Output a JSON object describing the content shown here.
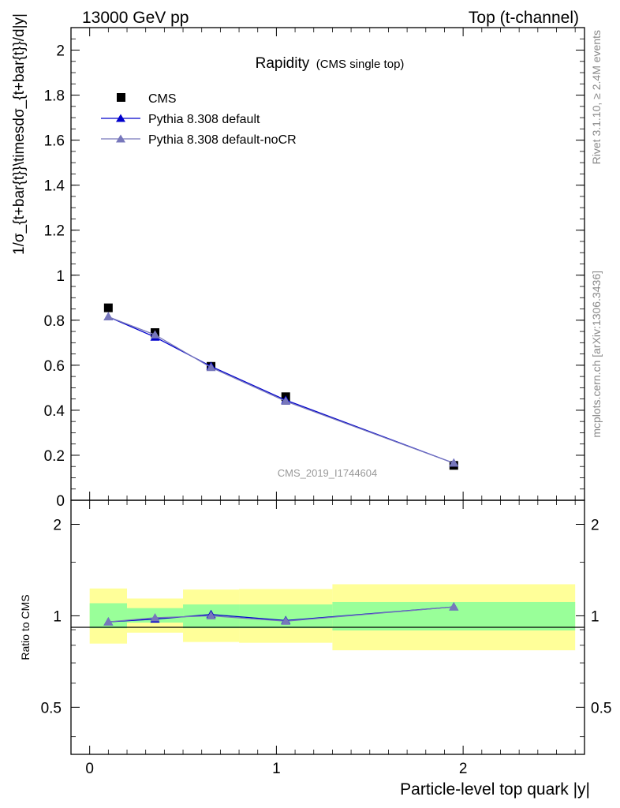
{
  "header": {
    "left": "13000 GeV pp",
    "right": "Top (t-channel)"
  },
  "side_labels": {
    "rivet": "Rivet 3.1.10, ≥ 2.4M events",
    "mcplots": "mcplots.cern.ch [arXiv:1306.3436]"
  },
  "colors": {
    "cms": "#000000",
    "pythia_default": "#0000cc",
    "pythia_nocr": "#7777bb",
    "band_inner": "#99ff99",
    "band_outer": "#ffff99"
  },
  "chart_data": [
    {
      "type": "scatter",
      "title": "Rapidity",
      "subtitle": "(CMS single top)",
      "ylabel": "1/σ_{t+bar{t}}\\timesdσ_{t+bar{t}}/d|y|",
      "watermark": "CMS_2019_I1744604",
      "xlim": [
        -0.1,
        2.65
      ],
      "ylim": [
        0,
        2.1
      ],
      "y_ticks": [
        0,
        0.2,
        0.4,
        0.6,
        0.8,
        1,
        1.2,
        1.4,
        1.6,
        1.8,
        2
      ],
      "y_tick_labels": [
        "0",
        "0.2",
        "0.4",
        "0.6",
        "0.8",
        "1",
        "1.2",
        "1.4",
        "1.6",
        "1.8",
        "2"
      ],
      "legend_position": "top-left",
      "series": [
        {
          "name": "CMS",
          "x": [
            0.1,
            0.35,
            0.65,
            1.05,
            1.95
          ],
          "y": [
            0.855,
            0.745,
            0.595,
            0.46,
            0.155
          ],
          "marker": "square"
        },
        {
          "name": "Pythia 8.308 default",
          "x": [
            0.1,
            0.35,
            0.65,
            1.05,
            1.95
          ],
          "y": [
            0.815,
            0.725,
            0.595,
            0.445,
            0.165
          ],
          "marker": "triangle"
        },
        {
          "name": "Pythia 8.308 default-noCR",
          "x": [
            0.1,
            0.35,
            0.65,
            1.05,
            1.95
          ],
          "y": [
            0.815,
            0.735,
            0.59,
            0.44,
            0.165
          ],
          "marker": "triangle"
        }
      ]
    },
    {
      "type": "line",
      "ylabel": "Ratio to CMS",
      "xlabel": "Particle-level top quark |y|",
      "xlim": [
        -0.1,
        2.65
      ],
      "ylim": [
        0.35,
        2.4
      ],
      "log_y": true,
      "x_ticks": [
        0,
        1,
        2
      ],
      "x_tick_labels": [
        "0",
        "1",
        "2"
      ],
      "y_ticks": [
        0.5,
        1,
        2
      ],
      "y_tick_labels": [
        "0.5",
        "1",
        "2"
      ],
      "bins": [
        {
          "lo": 0.0,
          "hi": 0.2,
          "inner": [
            0.91,
            1.1
          ],
          "outer": [
            0.81,
            1.23
          ]
        },
        {
          "lo": 0.2,
          "hi": 0.5,
          "inner": [
            0.95,
            1.06
          ],
          "outer": [
            0.88,
            1.14
          ]
        },
        {
          "lo": 0.5,
          "hi": 0.8,
          "inner": [
            0.91,
            1.09
          ],
          "outer": [
            0.82,
            1.22
          ]
        },
        {
          "lo": 0.8,
          "hi": 1.3,
          "inner": [
            0.91,
            1.09
          ],
          "outer": [
            0.815,
            1.225
          ]
        },
        {
          "lo": 1.3,
          "hi": 2.6,
          "inner": [
            0.895,
            1.11
          ],
          "outer": [
            0.77,
            1.27
          ]
        }
      ],
      "series": [
        {
          "name": "Pythia 8.308 default",
          "x": [
            0.1,
            0.35,
            0.65,
            1.05,
            1.95
          ],
          "y": [
            0.955,
            0.975,
            1.01,
            0.965,
            1.07
          ]
        },
        {
          "name": "Pythia 8.308 default-noCR",
          "x": [
            0.1,
            0.35,
            0.65,
            1.05,
            1.95
          ],
          "y": [
            0.955,
            0.985,
            1.0,
            0.96,
            1.07
          ]
        }
      ]
    }
  ]
}
